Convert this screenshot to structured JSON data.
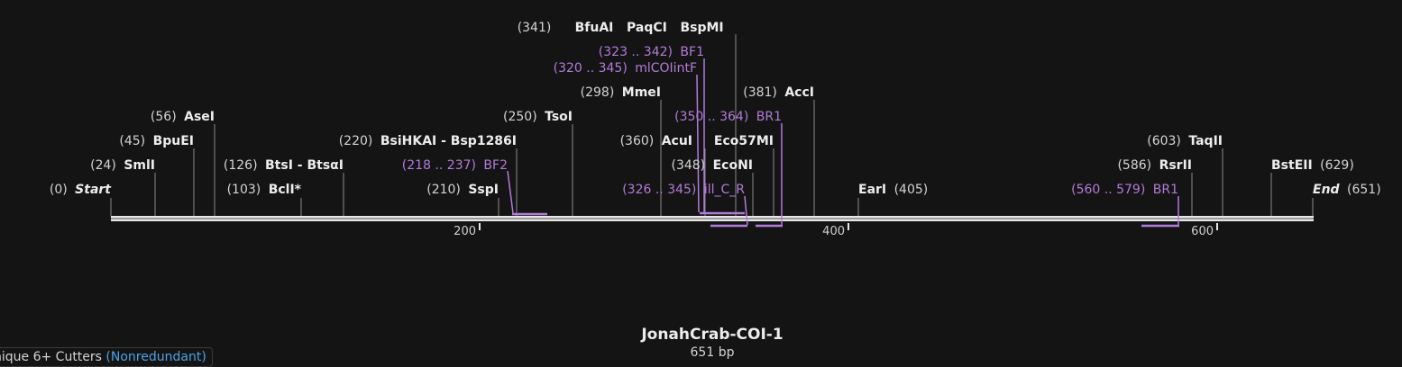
{
  "sequence": {
    "name": "JonahCrab-COI-1",
    "length_label": "651 bp",
    "length": 651
  },
  "axis_ticks": [
    "200",
    "400",
    "600"
  ],
  "badge": {
    "label": "nique 6+ Cutters",
    "mode": "(Nonredundant)"
  },
  "colors": {
    "background": "#141414",
    "primer": "#b27bd9",
    "accent": "#4aa3e8"
  },
  "enzymes": [
    {
      "text": "(0)",
      "name": "Start",
      "pos": 0
    },
    {
      "text": "(24)",
      "name": "SmlI",
      "pos": 24
    },
    {
      "text": "(45)",
      "name": "BpuEI",
      "pos": 45
    },
    {
      "text": "(56)",
      "name": "AseI",
      "pos": 56
    },
    {
      "text": "(103)",
      "name": "BclI*",
      "pos": 103
    },
    {
      "text": "(126)",
      "name": "BtsI - BtsαI",
      "pos": 126
    },
    {
      "text": "(210)",
      "name": "SspI",
      "pos": 210
    },
    {
      "text": "(220)",
      "name": "BsiHKAI - Bsp1286I",
      "pos": 220
    },
    {
      "text": "(250)",
      "name": "TsoI",
      "pos": 250
    },
    {
      "text": "(298)",
      "name": "MmeI",
      "pos": 298
    },
    {
      "text": "(341)",
      "name": "BfuAI   PaqCI   BspMI",
      "pos": 341
    },
    {
      "text": "(348)",
      "name": "EcoNI",
      "pos": 348
    },
    {
      "text": "(360)",
      "name": "AcuI",
      "pos": 360
    },
    {
      "text": "",
      "name": "Eco57MI",
      "pos": 360
    },
    {
      "text": "(381)",
      "name": "AccI",
      "pos": 381
    },
    {
      "text": "(405)",
      "name": "EarI",
      "pos": 405
    },
    {
      "text": "(586)",
      "name": "RsrII",
      "pos": 586
    },
    {
      "text": "(603)",
      "name": "TaqII",
      "pos": 603
    },
    {
      "text": "(629)",
      "name": "BstEII",
      "pos": 629
    },
    {
      "text": "(651)",
      "name": "End",
      "pos": 651
    }
  ],
  "primers": [
    {
      "range": "(218 .. 237)",
      "name": "BF2",
      "start": 218,
      "end": 237,
      "strand": "forward"
    },
    {
      "range": "(323 .. 342)",
      "name": "BF1",
      "start": 323,
      "end": 342,
      "strand": "forward"
    },
    {
      "range": "(320 .. 345)",
      "name": "mlCOIintF",
      "start": 320,
      "end": 345,
      "strand": "forward"
    },
    {
      "range": "(326 .. 345)",
      "name": "ill_C_R",
      "start": 326,
      "end": 345,
      "strand": "reverse"
    },
    {
      "range": "(350 .. 364)",
      "name": "BR1",
      "start": 350,
      "end": 364,
      "strand": "reverse"
    },
    {
      "range": "(560 .. 579)",
      "name": "BR1",
      "start": 560,
      "end": 579,
      "strand": "reverse"
    }
  ]
}
